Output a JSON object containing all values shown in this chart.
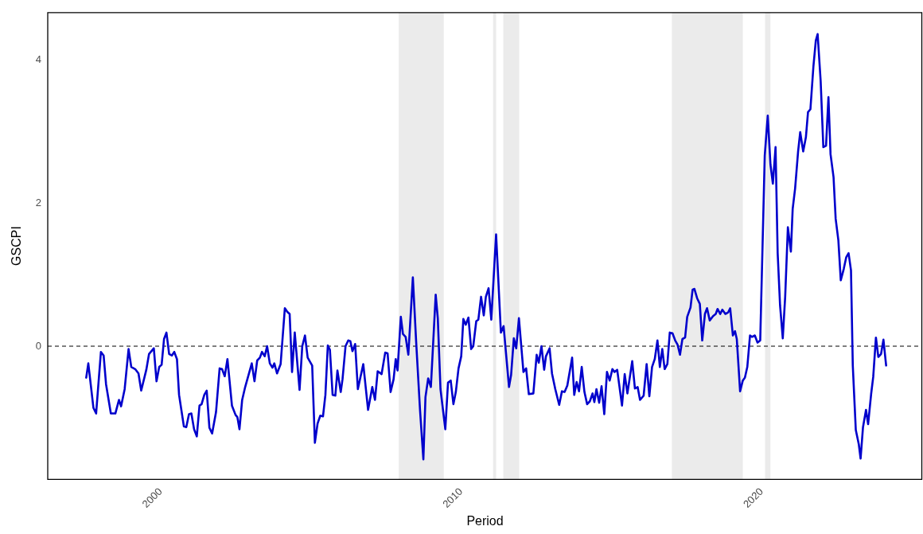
{
  "chart_data": {
    "type": "line",
    "xlabel": "Period",
    "ylabel": "GSCPI",
    "xlim": [
      1996.24,
      2025.34
    ],
    "xticks": [
      2000,
      2010,
      2020
    ],
    "ylim": [
      -1.86,
      4.66
    ],
    "yticks": [
      0,
      2,
      4
    ],
    "grid": false,
    "legend": false,
    "marker": "none",
    "line_style": "solid",
    "ref_lines": [
      {
        "axis": "y",
        "value": 0,
        "label": null,
        "color": "#000000",
        "line_style": "dashed"
      }
    ],
    "bands": [
      {
        "axis": "x",
        "from": 2007.92,
        "to": 2009.42,
        "label": null,
        "color": "#ebebeb"
      },
      {
        "axis": "x",
        "from": 2011.06,
        "to": 2011.16,
        "label": null,
        "color": "#ebebeb"
      },
      {
        "axis": "x",
        "from": 2011.4,
        "to": 2011.93,
        "label": null,
        "color": "#ebebeb"
      },
      {
        "axis": "x",
        "from": 2017.01,
        "to": 2019.37,
        "label": null,
        "color": "#ebebeb"
      },
      {
        "axis": "x",
        "from": 2020.11,
        "to": 2020.29,
        "label": null,
        "color": "#ebebeb"
      }
    ],
    "series": [
      {
        "color": "#0000cc",
        "x": [
          1997.52,
          1997.59,
          1997.76,
          1997.85,
          1998.01,
          1998.1,
          1998.18,
          1998.34,
          1998.49,
          1998.61,
          1998.68,
          1998.8,
          1998.93,
          1999.02,
          1999.15,
          1999.26,
          1999.35,
          1999.52,
          1999.61,
          1999.77,
          1999.86,
          1999.95,
          2000.03,
          2000.11,
          2000.19,
          2000.28,
          2000.37,
          2000.45,
          2000.54,
          2000.61,
          2000.77,
          2000.85,
          2000.94,
          2001.02,
          2001.11,
          2001.2,
          2001.29,
          2001.36,
          2001.45,
          2001.53,
          2001.62,
          2001.71,
          2001.84,
          2001.96,
          2002.04,
          2002.13,
          2002.22,
          2002.37,
          2002.49,
          2002.55,
          2002.62,
          2002.71,
          2002.81,
          2003.03,
          2003.12,
          2003.21,
          2003.3,
          2003.37,
          2003.46,
          2003.54,
          2003.63,
          2003.72,
          2003.78,
          2003.87,
          2003.99,
          2004.13,
          2004.21,
          2004.29,
          2004.37,
          2004.46,
          2004.62,
          2004.71,
          2004.8,
          2004.89,
          2005.04,
          2005.13,
          2005.22,
          2005.31,
          2005.4,
          2005.48,
          2005.56,
          2005.63,
          2005.72,
          2005.81,
          2005.88,
          2005.99,
          2006.05,
          2006.15,
          2006.24,
          2006.31,
          2006.38,
          2006.47,
          2006.56,
          2006.74,
          2006.9,
          2007.04,
          2007.13,
          2007.22,
          2007.35,
          2007.47,
          2007.55,
          2007.65,
          2007.75,
          2007.82,
          2007.88,
          2007.99,
          2008.06,
          2008.15,
          2008.24,
          2008.39,
          2008.5,
          2008.63,
          2008.74,
          2008.81,
          2008.9,
          2008.99,
          2009.15,
          2009.22,
          2009.31,
          2009.47,
          2009.56,
          2009.65,
          2009.74,
          2009.82,
          2009.91,
          2010.0,
          2010.07,
          2010.15,
          2010.24,
          2010.33,
          2010.4,
          2010.5,
          2010.57,
          2010.66,
          2010.75,
          2010.82,
          2010.91,
          2011.0,
          2011.16,
          2011.32,
          2011.41,
          2011.59,
          2011.66,
          2011.75,
          2011.83,
          2011.92,
          2012.07,
          2012.16,
          2012.25,
          2012.4,
          2012.51,
          2012.58,
          2012.67,
          2012.76,
          2012.82,
          2012.94,
          2013.02,
          2013.13,
          2013.26,
          2013.35,
          2013.44,
          2013.53,
          2013.69,
          2013.76,
          2013.84,
          2013.92,
          2014.01,
          2014.1,
          2014.19,
          2014.28,
          2014.37,
          2014.43,
          2014.5,
          2014.59,
          2014.67,
          2014.76,
          2014.85,
          2014.94,
          2015.03,
          2015.1,
          2015.19,
          2015.35,
          2015.44,
          2015.53,
          2015.69,
          2015.78,
          2015.87,
          2015.95,
          2016.07,
          2016.17,
          2016.26,
          2016.35,
          2016.44,
          2016.53,
          2016.61,
          2016.69,
          2016.77,
          2016.86,
          2016.94,
          2017.03,
          2017.12,
          2017.2,
          2017.28,
          2017.36,
          2017.45,
          2017.52,
          2017.63,
          2017.7,
          2017.76,
          2017.85,
          2017.94,
          2018.02,
          2018.11,
          2018.18,
          2018.27,
          2018.38,
          2018.47,
          2018.53,
          2018.62,
          2018.69,
          2018.79,
          2018.88,
          2018.95,
          2019.04,
          2019.11,
          2019.17,
          2019.28,
          2019.37,
          2019.44,
          2019.52,
          2019.61,
          2019.68,
          2019.77,
          2019.86,
          2019.95,
          2020.1,
          2020.2,
          2020.29,
          2020.37,
          2020.46,
          2020.53,
          2020.61,
          2020.7,
          2020.78,
          2020.87,
          2020.97,
          2021.03,
          2021.11,
          2021.21,
          2021.28,
          2021.38,
          2021.47,
          2021.54,
          2021.62,
          2021.72,
          2021.8,
          2021.86,
          2021.96,
          2022.05,
          2022.14,
          2022.22,
          2022.29,
          2022.39,
          2022.46,
          2022.55,
          2022.63,
          2022.73,
          2022.81,
          2022.89,
          2022.97,
          2023.03,
          2023.13,
          2023.23,
          2023.29,
          2023.37,
          2023.47,
          2023.54,
          2023.64,
          2023.71,
          2023.8,
          2023.88,
          2023.97,
          2024.05,
          2024.14
        ],
        "values": [
          -0.44,
          -0.24,
          -0.86,
          -0.94,
          -0.08,
          -0.13,
          -0.53,
          -0.94,
          -0.94,
          -0.75,
          -0.84,
          -0.6,
          -0.04,
          -0.29,
          -0.32,
          -0.38,
          -0.62,
          -0.33,
          -0.11,
          -0.03,
          -0.49,
          -0.29,
          -0.26,
          0.1,
          0.19,
          -0.11,
          -0.13,
          -0.08,
          -0.18,
          -0.68,
          -1.12,
          -1.13,
          -0.95,
          -0.94,
          -1.16,
          -1.26,
          -0.83,
          -0.81,
          -0.68,
          -0.62,
          -1.14,
          -1.22,
          -0.92,
          -0.31,
          -0.32,
          -0.42,
          -0.18,
          -0.83,
          -0.96,
          -0.99,
          -1.16,
          -0.75,
          -0.57,
          -0.24,
          -0.49,
          -0.2,
          -0.16,
          -0.08,
          -0.14,
          0.0,
          -0.24,
          -0.3,
          -0.24,
          -0.38,
          -0.25,
          0.53,
          0.48,
          0.45,
          -0.36,
          0.19,
          -0.61,
          0.0,
          0.15,
          -0.16,
          -0.27,
          -1.35,
          -1.08,
          -0.97,
          -0.98,
          -0.68,
          0.01,
          -0.05,
          -0.68,
          -0.69,
          -0.34,
          -0.64,
          -0.46,
          0.0,
          0.08,
          0.07,
          -0.07,
          0.03,
          -0.6,
          -0.25,
          -0.89,
          -0.57,
          -0.75,
          -0.35,
          -0.39,
          -0.09,
          -0.1,
          -0.64,
          -0.46,
          -0.18,
          -0.34,
          0.41,
          0.17,
          0.13,
          -0.12,
          0.96,
          0.06,
          -0.9,
          -1.58,
          -0.71,
          -0.45,
          -0.57,
          0.72,
          0.39,
          -0.6,
          -1.16,
          -0.51,
          -0.48,
          -0.81,
          -0.64,
          -0.31,
          -0.14,
          0.38,
          0.3,
          0.4,
          -0.04,
          0.0,
          0.35,
          0.37,
          0.69,
          0.43,
          0.69,
          0.81,
          0.37,
          1.56,
          0.19,
          0.28,
          -0.57,
          -0.4,
          0.11,
          -0.03,
          0.39,
          -0.36,
          -0.31,
          -0.67,
          -0.66,
          -0.12,
          -0.23,
          0.0,
          -0.33,
          -0.14,
          -0.03,
          -0.38,
          -0.6,
          -0.82,
          -0.63,
          -0.64,
          -0.55,
          -0.16,
          -0.68,
          -0.5,
          -0.63,
          -0.29,
          -0.64,
          -0.81,
          -0.77,
          -0.66,
          -0.78,
          -0.6,
          -0.79,
          -0.56,
          -0.95,
          -0.36,
          -0.48,
          -0.32,
          -0.36,
          -0.33,
          -0.83,
          -0.39,
          -0.66,
          -0.21,
          -0.59,
          -0.57,
          -0.75,
          -0.69,
          -0.25,
          -0.7,
          -0.29,
          -0.18,
          0.08,
          -0.29,
          -0.04,
          -0.32,
          -0.25,
          0.19,
          0.18,
          0.08,
          0.02,
          -0.12,
          0.1,
          0.12,
          0.41,
          0.54,
          0.79,
          0.8,
          0.67,
          0.59,
          0.08,
          0.45,
          0.53,
          0.36,
          0.42,
          0.45,
          0.52,
          0.45,
          0.51,
          0.45,
          0.47,
          0.53,
          0.15,
          0.21,
          0.1,
          -0.63,
          -0.48,
          -0.44,
          -0.29,
          0.15,
          0.13,
          0.15,
          0.05,
          0.08,
          2.66,
          3.22,
          2.54,
          2.27,
          2.78,
          1.3,
          0.57,
          0.11,
          0.69,
          1.66,
          1.32,
          1.92,
          2.2,
          2.72,
          2.99,
          2.72,
          2.92,
          3.27,
          3.31,
          3.91,
          4.27,
          4.36,
          3.71,
          2.78,
          2.8,
          3.48,
          2.68,
          2.36,
          1.78,
          1.48,
          0.92,
          1.08,
          1.24,
          1.3,
          1.06,
          -0.27,
          -1.17,
          -1.37,
          -1.57,
          -1.13,
          -0.89,
          -1.09,
          -0.67,
          -0.43,
          0.12,
          -0.15,
          -0.11,
          0.09,
          -0.27
        ]
      }
    ]
  }
}
